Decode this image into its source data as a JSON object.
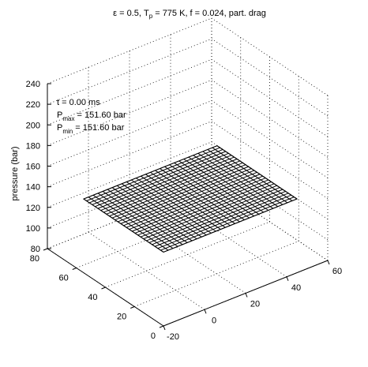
{
  "chart_data": {
    "type": "surface",
    "title": {
      "part1": "ε = 0.5, T",
      "sub": "p",
      "part2": " = 775 K, f = 0.024, part. drag"
    },
    "zlabel": "pressure (bar)",
    "x_ticks": [
      "-20",
      "0",
      "20",
      "40",
      "60"
    ],
    "y_ticks": [
      "0",
      "20",
      "40",
      "60",
      "80"
    ],
    "z_ticks": [
      "80",
      "100",
      "120",
      "140",
      "160",
      "180",
      "200",
      "220",
      "240"
    ],
    "xlim": [
      -20,
      60
    ],
    "ylim": [
      0,
      80
    ],
    "zlim": [
      80,
      240
    ],
    "surface": {
      "x_range": [
        -20,
        45
      ],
      "y_range": [
        0,
        55
      ],
      "z_value": 151.6,
      "grid_lines": 28,
      "color": "#000000",
      "face_color": "#ffffff"
    },
    "annotation": {
      "time": {
        "prefix": "t = ",
        "value": "0.00 ms"
      },
      "pmax": {
        "label": "P",
        "sub": "max",
        "value": " = 151.60 bar"
      },
      "pmin": {
        "label": "P",
        "sub": "min",
        "value": " = 151.60 bar"
      }
    },
    "grid": true,
    "box": "open"
  }
}
